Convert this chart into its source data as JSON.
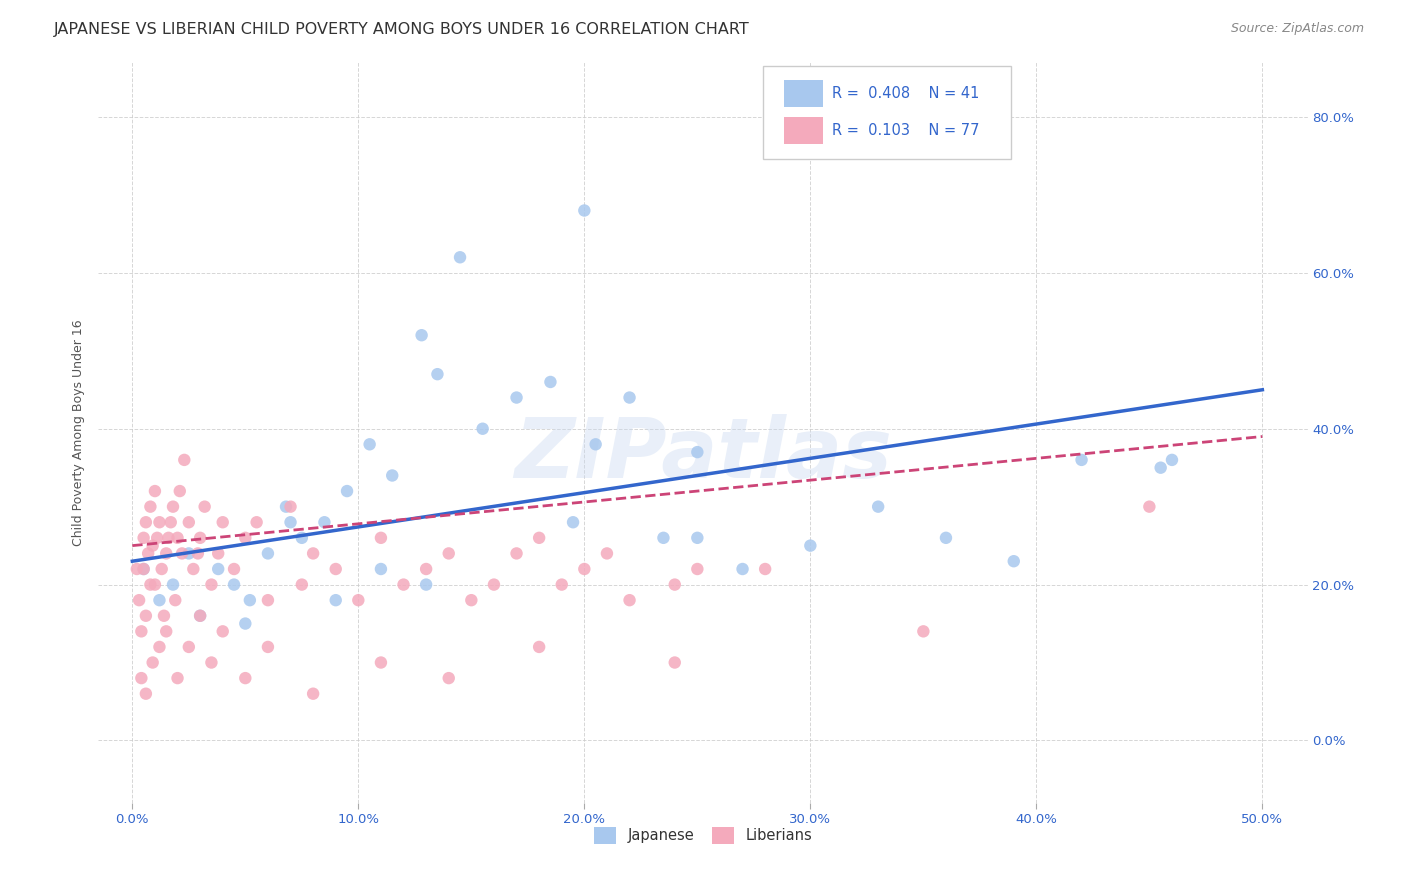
{
  "title": "JAPANESE VS LIBERIAN CHILD POVERTY AMONG BOYS UNDER 16 CORRELATION CHART",
  "source": "Source: ZipAtlas.com",
  "xlabel_vals": [
    0,
    10,
    20,
    30,
    40,
    50
  ],
  "ylabel_vals": [
    0,
    20,
    40,
    60,
    80
  ],
  "xlim": [
    -1.5,
    52
  ],
  "ylim": [
    -8,
    87
  ],
  "ylabel": "Child Poverty Among Boys Under 16",
  "japanese_R": 0.408,
  "japanese_N": 41,
  "liberian_R": 0.103,
  "liberian_N": 77,
  "japanese_color": "#A8C8EE",
  "liberian_color": "#F4AABC",
  "japanese_line_color": "#3366CC",
  "liberian_line_color": "#CC4477",
  "background_color": "#FFFFFF",
  "watermark": "ZIPatlas",
  "title_fontsize": 11.5,
  "axis_label_fontsize": 9,
  "tick_fontsize": 9.5,
  "source_fontsize": 9,
  "japanese_x": [
    0.5,
    1.2,
    1.8,
    2.5,
    3.0,
    3.8,
    4.5,
    5.2,
    6.0,
    6.8,
    7.5,
    8.5,
    9.5,
    10.5,
    11.5,
    12.8,
    13.5,
    14.5,
    15.5,
    17.0,
    18.5,
    19.5,
    20.5,
    22.0,
    23.5,
    25.0,
    27.0,
    30.0,
    33.0,
    36.0,
    39.0,
    42.0,
    45.5,
    5.0,
    7.0,
    9.0,
    11.0,
    13.0,
    20.0,
    25.0,
    46.0
  ],
  "japanese_y": [
    22.0,
    18.0,
    20.0,
    24.0,
    16.0,
    22.0,
    20.0,
    18.0,
    24.0,
    30.0,
    26.0,
    28.0,
    32.0,
    38.0,
    34.0,
    52.0,
    47.0,
    62.0,
    40.0,
    44.0,
    46.0,
    28.0,
    38.0,
    44.0,
    26.0,
    26.0,
    22.0,
    25.0,
    30.0,
    26.0,
    23.0,
    36.0,
    35.0,
    15.0,
    28.0,
    18.0,
    22.0,
    20.0,
    68.0,
    37.0,
    36.0
  ],
  "liberian_x": [
    0.2,
    0.3,
    0.4,
    0.5,
    0.5,
    0.6,
    0.6,
    0.7,
    0.8,
    0.8,
    0.9,
    1.0,
    1.0,
    1.1,
    1.2,
    1.3,
    1.4,
    1.5,
    1.6,
    1.7,
    1.8,
    1.9,
    2.0,
    2.1,
    2.2,
    2.3,
    2.5,
    2.7,
    2.9,
    3.0,
    3.2,
    3.5,
    3.8,
    4.0,
    4.5,
    5.0,
    5.5,
    6.0,
    7.0,
    7.5,
    8.0,
    9.0,
    10.0,
    11.0,
    12.0,
    13.0,
    14.0,
    15.0,
    16.0,
    17.0,
    18.0,
    19.0,
    20.0,
    21.0,
    22.0,
    24.0,
    25.0,
    0.4,
    0.6,
    0.9,
    1.2,
    1.5,
    2.0,
    2.5,
    3.0,
    3.5,
    4.0,
    5.0,
    6.0,
    8.0,
    11.0,
    14.0,
    18.0,
    24.0,
    28.0,
    35.0,
    45.0
  ],
  "liberian_y": [
    22.0,
    18.0,
    14.0,
    26.0,
    22.0,
    28.0,
    16.0,
    24.0,
    30.0,
    20.0,
    25.0,
    32.0,
    20.0,
    26.0,
    28.0,
    22.0,
    16.0,
    24.0,
    26.0,
    28.0,
    30.0,
    18.0,
    26.0,
    32.0,
    24.0,
    36.0,
    28.0,
    22.0,
    24.0,
    26.0,
    30.0,
    20.0,
    24.0,
    28.0,
    22.0,
    26.0,
    28.0,
    18.0,
    30.0,
    20.0,
    24.0,
    22.0,
    18.0,
    26.0,
    20.0,
    22.0,
    24.0,
    18.0,
    20.0,
    24.0,
    26.0,
    20.0,
    22.0,
    24.0,
    18.0,
    20.0,
    22.0,
    8.0,
    6.0,
    10.0,
    12.0,
    14.0,
    8.0,
    12.0,
    16.0,
    10.0,
    14.0,
    8.0,
    12.0,
    6.0,
    10.0,
    8.0,
    12.0,
    10.0,
    22.0,
    14.0,
    30.0
  ],
  "jap_line_x0": 0,
  "jap_line_x1": 50,
  "jap_line_y0": 23.0,
  "jap_line_y1": 45.0,
  "lib_line_x0": 0,
  "lib_line_x1": 50,
  "lib_line_y0": 25.0,
  "lib_line_y1": 39.0
}
